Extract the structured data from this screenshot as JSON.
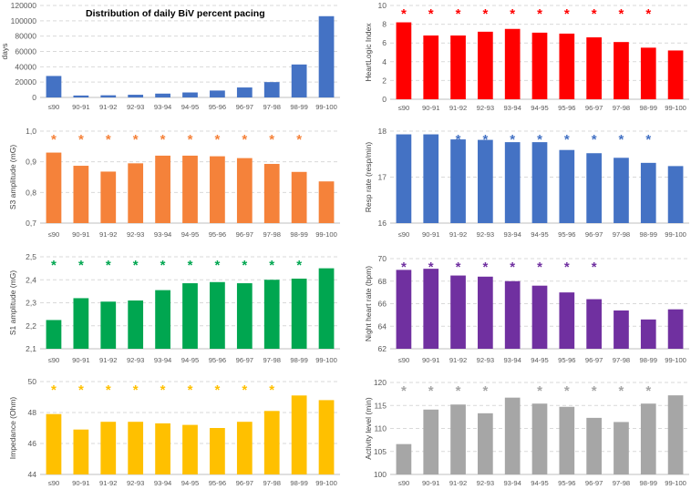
{
  "chart_data": [
    {
      "id": "pacing_days",
      "type": "bar",
      "title": "Distribution of daily BiV percent pacing",
      "ylabel": "days",
      "xlabel": "",
      "categories": [
        "≤90",
        "90-91",
        "91-92",
        "92-93",
        "93-94",
        "94-95",
        "95-96",
        "96-97",
        "97-98",
        "98-99",
        "99-100"
      ],
      "values": [
        28000,
        2500,
        2800,
        3500,
        5000,
        6500,
        9000,
        13000,
        20000,
        43000,
        106000
      ],
      "ylim": [
        0,
        120000
      ],
      "yticks": [
        "0",
        "20000",
        "40000",
        "60000",
        "80000",
        "100000",
        "120000"
      ],
      "color": "#4472C4",
      "significant": [],
      "star": "*"
    },
    {
      "id": "heartlogic",
      "type": "bar",
      "title": "",
      "ylabel": "HeartLogic Index",
      "xlabel": "",
      "categories": [
        "≤90",
        "90-91",
        "91-92",
        "92-93",
        "93-94",
        "94-95",
        "95-96",
        "96-97",
        "97-98",
        "98-99",
        "99-100"
      ],
      "values": [
        8.2,
        6.8,
        6.8,
        7.2,
        7.5,
        7.1,
        7.0,
        6.6,
        6.1,
        5.5,
        5.2
      ],
      "ylim": [
        0,
        10
      ],
      "yticks": [
        "0",
        "2",
        "4",
        "6",
        "8",
        "10"
      ],
      "color": "#FF0000",
      "significant": [
        true,
        true,
        true,
        true,
        true,
        true,
        true,
        true,
        true,
        true,
        false
      ],
      "star": "*"
    },
    {
      "id": "s3",
      "type": "bar",
      "title": "",
      "ylabel": "S3 amplitude (mG)",
      "xlabel": "",
      "categories": [
        "≤90",
        "90-91",
        "91-92",
        "92-93",
        "93-94",
        "94-95",
        "95-96",
        "96-97",
        "97-98",
        "98-99",
        "99-100"
      ],
      "values": [
        0.93,
        0.887,
        0.868,
        0.895,
        0.92,
        0.92,
        0.918,
        0.912,
        0.893,
        0.867,
        0.836
      ],
      "ylim": [
        0.7,
        1.0
      ],
      "yticks": [
        "0,7",
        "0,8",
        "0,9",
        "1,0"
      ],
      "color": "#F5823A",
      "significant": [
        true,
        true,
        true,
        true,
        true,
        true,
        true,
        true,
        true,
        true,
        false
      ],
      "star": "*"
    },
    {
      "id": "resp",
      "type": "bar",
      "title": "",
      "ylabel": "Resp rate (resp/min)",
      "xlabel": "",
      "categories": [
        "≤90",
        "90-91",
        "91-92",
        "92-93",
        "93-94",
        "94-95",
        "95-96",
        "96-97",
        "97-98",
        "98-99",
        "99-100"
      ],
      "values": [
        17.93,
        17.93,
        17.82,
        17.81,
        17.76,
        17.76,
        17.59,
        17.52,
        17.42,
        17.31,
        17.24
      ],
      "ylim": [
        16,
        18
      ],
      "yticks": [
        "16",
        "17",
        "18"
      ],
      "color": "#4472C4",
      "significant": [
        true,
        true,
        true,
        true,
        true,
        true,
        true,
        true,
        true,
        true,
        false
      ],
      "star": "*"
    },
    {
      "id": "s1",
      "type": "bar",
      "title": "",
      "ylabel": "S1 amplitude (mG)",
      "xlabel": "",
      "categories": [
        "≤90",
        "90-91",
        "91-92",
        "92-93",
        "93-94",
        "94-95",
        "95-96",
        "96-97",
        "97-98",
        "98-99",
        "99-100"
      ],
      "values": [
        2.225,
        2.32,
        2.305,
        2.31,
        2.355,
        2.385,
        2.39,
        2.385,
        2.4,
        2.405,
        2.45
      ],
      "ylim": [
        2.1,
        2.5
      ],
      "yticks": [
        "2,1",
        "2,2",
        "2,3",
        "2,4",
        "2,5"
      ],
      "color": "#00A650",
      "significant": [
        true,
        true,
        true,
        true,
        true,
        true,
        true,
        true,
        true,
        true,
        false
      ],
      "star": "*"
    },
    {
      "id": "night_hr",
      "type": "bar",
      "title": "",
      "ylabel": "Night heart rate (bpm)",
      "xlabel": "",
      "categories": [
        "≤90",
        "90-91",
        "91-92",
        "92-93",
        "93-94",
        "94-95",
        "95-96",
        "96-97",
        "97-98",
        "98-99",
        "99-100"
      ],
      "values": [
        69.0,
        69.1,
        68.5,
        68.4,
        68.0,
        67.6,
        67.0,
        66.4,
        65.4,
        64.6,
        65.5
      ],
      "ylim": [
        62,
        70
      ],
      "yticks": [
        "62",
        "64",
        "66",
        "68",
        "70"
      ],
      "color": "#7030A0",
      "significant": [
        true,
        true,
        true,
        true,
        true,
        true,
        true,
        true,
        false,
        false,
        false
      ],
      "star": "*"
    },
    {
      "id": "impedance",
      "type": "bar",
      "title": "",
      "ylabel": "Impedance (Ohm)",
      "xlabel": "",
      "categories": [
        "≤90",
        "90-91",
        "91-92",
        "92-93",
        "93-94",
        "94-95",
        "95-96",
        "96-97",
        "97-98",
        "98-99",
        "99-100"
      ],
      "values": [
        47.9,
        46.9,
        47.4,
        47.4,
        47.3,
        47.2,
        47.0,
        47.4,
        48.1,
        49.1,
        48.8
      ],
      "ylim": [
        44,
        50
      ],
      "yticks": [
        "44",
        "46",
        "48",
        "50"
      ],
      "color": "#FFC000",
      "significant": [
        true,
        true,
        true,
        true,
        true,
        true,
        true,
        true,
        true,
        false,
        false
      ],
      "star": "*"
    },
    {
      "id": "activity",
      "type": "bar",
      "title": "",
      "ylabel": "Activity level (min)",
      "xlabel": "",
      "categories": [
        "≤90",
        "90-91",
        "91-92",
        "92-93",
        "93-94",
        "94-95",
        "95-96",
        "96-97",
        "97-98",
        "98-99",
        "99-100"
      ],
      "values": [
        106.6,
        114.1,
        115.2,
        113.3,
        116.7,
        115.4,
        114.7,
        112.3,
        111.4,
        115.4,
        117.2
      ],
      "ylim": [
        100,
        120
      ],
      "yticks": [
        "100",
        "105",
        "110",
        "115",
        "120"
      ],
      "color": "#A6A6A6",
      "significant": [
        true,
        true,
        true,
        true,
        false,
        true,
        true,
        true,
        true,
        true,
        false
      ],
      "star": "*"
    }
  ]
}
